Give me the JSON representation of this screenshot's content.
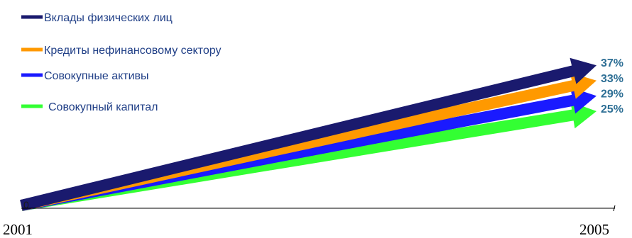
{
  "chart_data": {
    "type": "line",
    "x": [
      "2001",
      "2005"
    ],
    "origin_label": "0",
    "series": [
      {
        "name": "Вклады физических лиц",
        "color": "#1a1a6e",
        "values": [
          0,
          37
        ],
        "end_label": "37%"
      },
      {
        "name": "Кредиты нефинансовому сектору",
        "color": "#ff9900",
        "values": [
          0,
          33
        ],
        "end_label": "33%"
      },
      {
        "name": "Совокупные активы",
        "color": "#1a1aff",
        "values": [
          0,
          29
        ],
        "end_label": "29%"
      },
      {
        "name": "Совокупный капитал",
        "color": "#33ff33",
        "values": [
          0,
          25
        ],
        "end_label": "25%"
      }
    ],
    "legend_position": "top-left",
    "grid": false
  }
}
